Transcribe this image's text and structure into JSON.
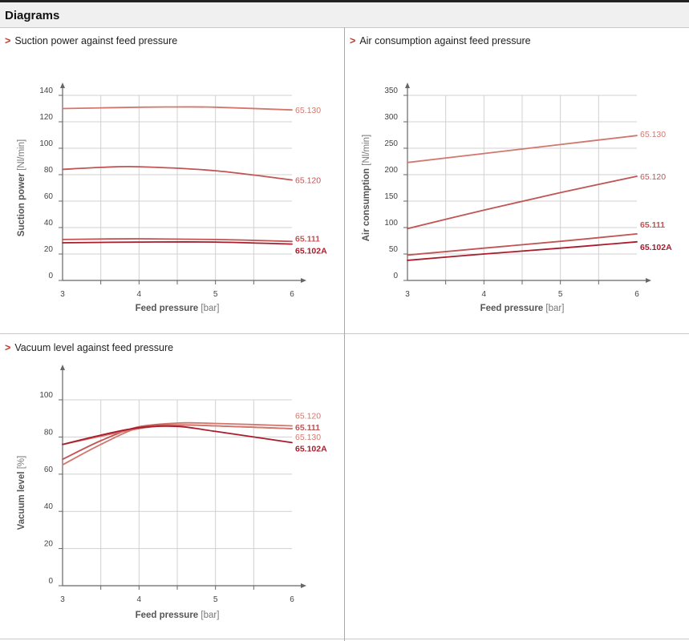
{
  "header": {
    "title": "Diagrams"
  },
  "colors": {
    "light": "#d2776d",
    "mid": "#c15454",
    "dark": "#a81c2c",
    "axis": "#666666",
    "grid": "#d0d0d0"
  },
  "panels": [
    {
      "title": "Suction power against feed pressure"
    },
    {
      "title": "Air consumption against feed pressure"
    },
    {
      "title": "Vacuum level against feed pressure"
    }
  ],
  "chart_data": [
    {
      "type": "line",
      "title": "Suction power against feed pressure",
      "xlabel": "Feed pressure",
      "xunit": "[bar]",
      "ylabel": "Suction power",
      "yunit": "[Nl/min]",
      "xlim": [
        3,
        6
      ],
      "ylim": [
        0,
        140
      ],
      "xticks": [
        3,
        4,
        5,
        6
      ],
      "yticks": [
        0,
        20,
        40,
        60,
        80,
        100,
        120,
        140
      ],
      "grid": true,
      "series": [
        {
          "name": "65.130",
          "color": "light",
          "bold": false,
          "x": [
            3,
            4,
            4.5,
            5,
            6
          ],
          "y": [
            130,
            131,
            131.2,
            131,
            129
          ]
        },
        {
          "name": "65.120",
          "color": "mid",
          "bold": false,
          "x": [
            3,
            3.5,
            4,
            5,
            6
          ],
          "y": [
            84,
            85.5,
            86,
            83,
            76
          ]
        },
        {
          "name": "65.111",
          "color": "mid",
          "bold": true,
          "x": [
            3,
            4,
            5,
            6
          ],
          "y": [
            31,
            31.5,
            31,
            29.5
          ]
        },
        {
          "name": "65.102A",
          "color": "dark",
          "bold": true,
          "x": [
            3,
            4,
            5,
            6
          ],
          "y": [
            28.5,
            29,
            29,
            27.5
          ]
        }
      ]
    },
    {
      "type": "line",
      "title": "Air consumption against feed pressure",
      "xlabel": "Feed pressure",
      "xunit": "[bar]",
      "ylabel": "Air consumption",
      "yunit": "[Nl/min]",
      "xlim": [
        3,
        6
      ],
      "ylim": [
        0,
        350
      ],
      "xticks": [
        3,
        4,
        5,
        6
      ],
      "yticks": [
        0,
        50,
        100,
        150,
        200,
        250,
        300,
        350
      ],
      "grid": true,
      "series": [
        {
          "name": "65.130",
          "color": "light",
          "bold": false,
          "x": [
            3,
            4,
            5,
            6
          ],
          "y": [
            223,
            240,
            257,
            274
          ]
        },
        {
          "name": "65.120",
          "color": "mid",
          "bold": false,
          "x": [
            3,
            4,
            5,
            6
          ],
          "y": [
            98,
            133,
            166,
            197
          ]
        },
        {
          "name": "65.111",
          "color": "mid",
          "bold": true,
          "x": [
            3,
            4,
            5,
            6
          ],
          "y": [
            48,
            61,
            74,
            88
          ]
        },
        {
          "name": "65.102A",
          "color": "dark",
          "bold": true,
          "x": [
            3,
            4,
            5,
            6
          ],
          "y": [
            38,
            50,
            61,
            73
          ]
        }
      ]
    },
    {
      "type": "line",
      "title": "Vacuum level against feed pressure",
      "xlabel": "Feed pressure",
      "xunit": "[bar]",
      "ylabel": "Vacuum level",
      "yunit": "[%]",
      "xlim": [
        3,
        6
      ],
      "ylim": [
        0,
        100
      ],
      "xticks": [
        3,
        4,
        5,
        6
      ],
      "yticks": [
        0,
        20,
        40,
        60,
        80,
        100
      ],
      "grid": true,
      "series": [
        {
          "name": "65.120",
          "color": "light",
          "bold": false,
          "x": [
            3,
            3.5,
            4,
            4.5,
            5,
            6
          ],
          "y": [
            65,
            76,
            85,
            87.5,
            87.3,
            86
          ]
        },
        {
          "name": "65.111",
          "color": "mid",
          "bold": true,
          "x": [
            3,
            3.5,
            4,
            4.5,
            5,
            6
          ],
          "y": [
            68,
            78,
            85.5,
            86.5,
            86,
            84.5
          ]
        },
        {
          "name": "65.130",
          "color": "light",
          "bold": false,
          "x": [
            3,
            4,
            4.5,
            5,
            6
          ],
          "y": [
            76,
            84.5,
            86.3,
            86,
            84.5
          ]
        },
        {
          "name": "65.102A",
          "color": "dark",
          "bold": true,
          "x": [
            3,
            3.5,
            4,
            4.5,
            5,
            6
          ],
          "y": [
            76,
            81,
            85,
            85.7,
            83,
            77
          ]
        }
      ]
    }
  ]
}
